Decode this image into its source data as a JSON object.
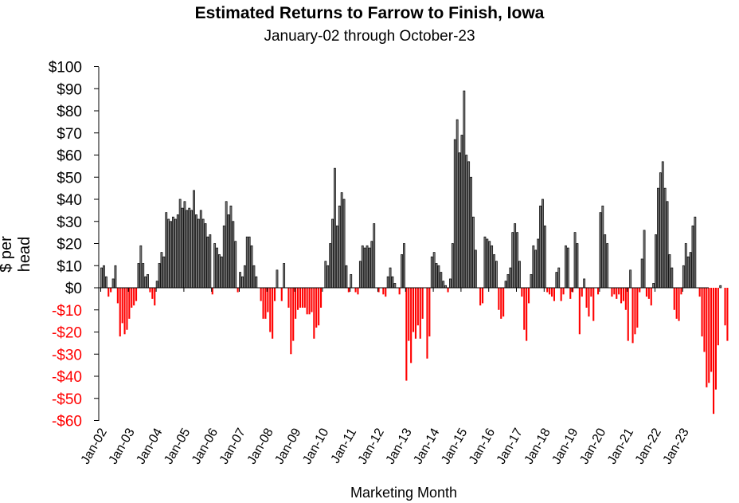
{
  "chart_data": {
    "type": "bar",
    "title": "Estimated Returns to Farrow to Finish, Iowa",
    "subtitle": "January-02 through October-23",
    "ylabel": "$ per head",
    "xlabel": "Marketing Month",
    "ylim": [
      -60,
      100
    ],
    "yticks": [
      {
        "value": 100,
        "label": "$100"
      },
      {
        "value": 90,
        "label": "$90"
      },
      {
        "value": 80,
        "label": "$80"
      },
      {
        "value": 70,
        "label": "$70"
      },
      {
        "value": 60,
        "label": "$60"
      },
      {
        "value": 50,
        "label": "$50"
      },
      {
        "value": 40,
        "label": "$40"
      },
      {
        "value": 30,
        "label": "$30"
      },
      {
        "value": 20,
        "label": "$20"
      },
      {
        "value": 10,
        "label": "$10"
      },
      {
        "value": 0,
        "label": "$0"
      },
      {
        "value": -10,
        "label": "-$10"
      },
      {
        "value": -20,
        "label": "-$20"
      },
      {
        "value": -30,
        "label": "-$30"
      },
      {
        "value": -40,
        "label": "-$40"
      },
      {
        "value": -50,
        "label": "-$50"
      },
      {
        "value": -60,
        "label": "-$60"
      }
    ],
    "xticks": [
      "Jan-02",
      "Jan-03",
      "Jan-04",
      "Jan-05",
      "Jan-06",
      "Jan-07",
      "Jan-08",
      "Jan-09",
      "Jan-10",
      "Jan-11",
      "Jan-12",
      "Jan-13",
      "Jan-14",
      "Jan-15",
      "Jan-16",
      "Jan-17",
      "Jan-18",
      "Jan-19",
      "Jan-20",
      "Jan-21",
      "Jan-22",
      "Jan-23"
    ],
    "colors": {
      "positive": "#000000",
      "negative": "#ff0000",
      "positive_fill": "#808080"
    },
    "values": [
      9,
      10,
      5,
      -4,
      -2,
      4,
      10,
      -7,
      -22,
      -16,
      -21,
      -19,
      -14,
      -9,
      -8,
      -6,
      11,
      19,
      11,
      5,
      6,
      -2,
      -5,
      -8,
      3,
      11,
      16,
      14,
      34,
      31,
      30,
      32,
      31,
      33,
      40,
      36,
      39,
      35,
      36,
      35,
      44,
      33,
      31,
      35,
      31,
      29,
      23,
      24,
      -3,
      20,
      18,
      15,
      14,
      28,
      39,
      33,
      37,
      30,
      21,
      -2,
      7,
      5,
      10,
      23,
      23,
      19,
      10,
      5,
      0,
      -6,
      -14,
      -14,
      -11,
      -20,
      -23,
      -6,
      8,
      0,
      -6,
      11,
      0,
      -9,
      -30,
      -24,
      -14,
      -10,
      -9,
      -9,
      -9,
      -12,
      -12,
      -11,
      -23,
      -18,
      -17,
      -9,
      0,
      12,
      10,
      20,
      31,
      54,
      28,
      37,
      43,
      40,
      10,
      -2,
      6,
      0,
      -2,
      -3,
      12,
      19,
      18,
      19,
      18,
      21,
      29,
      0,
      -2,
      0,
      -3,
      -4,
      5,
      9,
      5,
      2,
      0,
      -3,
      15,
      20,
      -42,
      -24,
      -34,
      -20,
      -23,
      -17,
      -23,
      -14,
      0,
      -32,
      -22,
      14,
      16,
      11,
      10,
      7,
      3,
      1,
      -2,
      4,
      20,
      67,
      76,
      61,
      69,
      89,
      60,
      57,
      50,
      32,
      17,
      0,
      -8,
      -7,
      23,
      22,
      21,
      19,
      15,
      12,
      -10,
      -14,
      -13,
      3,
      6,
      9,
      25,
      29,
      25,
      12,
      -4,
      -19,
      -24,
      -7,
      6,
      19,
      17,
      22,
      37,
      40,
      28,
      -2,
      -3,
      -4,
      -6,
      7,
      9,
      -6,
      -3,
      19,
      18,
      -5,
      -2,
      25,
      20,
      -21,
      -4,
      4,
      -9,
      -13,
      -4,
      -15,
      0,
      -3,
      34,
      37,
      24,
      20,
      0,
      -4,
      -3,
      -5,
      -3,
      -7,
      -6,
      -10,
      -24,
      8,
      -25,
      -21,
      -18,
      -2,
      13,
      26,
      -4,
      -5,
      -8,
      2,
      24,
      45,
      52,
      57,
      45,
      39,
      15,
      9,
      -10,
      -14,
      -15,
      -3,
      10,
      20,
      14,
      16,
      28,
      32,
      0,
      -4,
      -22,
      -29,
      -45,
      -43,
      -38,
      -57,
      -46,
      -26,
      1,
      0,
      -17,
      -24
    ]
  }
}
